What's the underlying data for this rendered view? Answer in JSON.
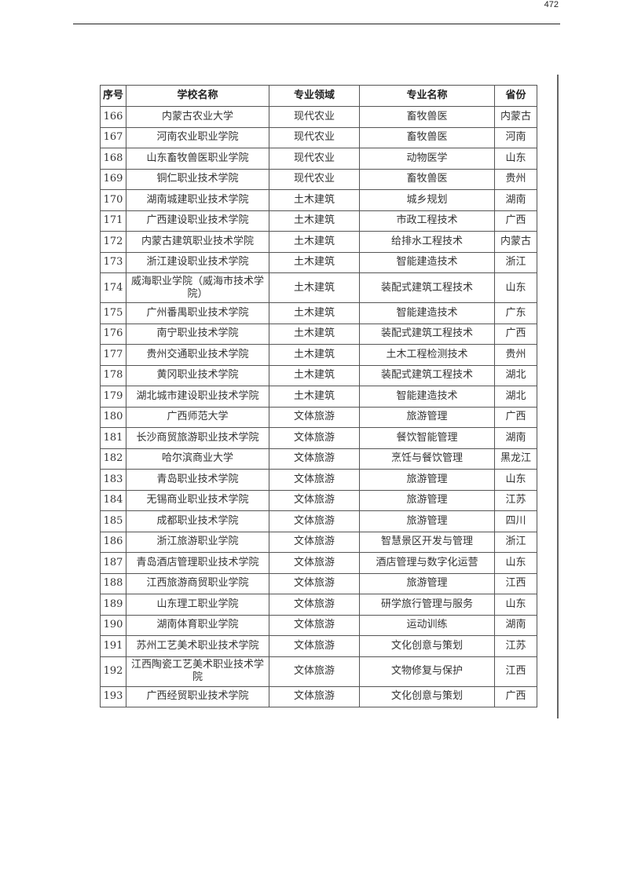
{
  "page_number": "472",
  "table": {
    "headers": [
      "序号",
      "学校名称",
      "专业领域",
      "专业名称",
      "省份"
    ],
    "rows": [
      [
        "166",
        "内蒙古农业大学",
        "现代农业",
        "畜牧兽医",
        "内蒙古"
      ],
      [
        "167",
        "河南农业职业学院",
        "现代农业",
        "畜牧兽医",
        "河南"
      ],
      [
        "168",
        "山东畜牧兽医职业学院",
        "现代农业",
        "动物医学",
        "山东"
      ],
      [
        "169",
        "铜仁职业技术学院",
        "现代农业",
        "畜牧兽医",
        "贵州"
      ],
      [
        "170",
        "湖南城建职业技术学院",
        "土木建筑",
        "城乡规划",
        "湖南"
      ],
      [
        "171",
        "广西建设职业技术学院",
        "土木建筑",
        "市政工程技术",
        "广西"
      ],
      [
        "172",
        "内蒙古建筑职业技术学院",
        "土木建筑",
        "给排水工程技术",
        "内蒙古"
      ],
      [
        "173",
        "浙江建设职业技术学院",
        "土木建筑",
        "智能建造技术",
        "浙江"
      ],
      [
        "174",
        "威海职业学院（威海市技术学院）",
        "土木建筑",
        "装配式建筑工程技术",
        "山东"
      ],
      [
        "175",
        "广州番禺职业技术学院",
        "土木建筑",
        "智能建造技术",
        "广东"
      ],
      [
        "176",
        "南宁职业技术学院",
        "土木建筑",
        "装配式建筑工程技术",
        "广西"
      ],
      [
        "177",
        "贵州交通职业技术学院",
        "土木建筑",
        "土木工程检测技术",
        "贵州"
      ],
      [
        "178",
        "黄冈职业技术学院",
        "土木建筑",
        "装配式建筑工程技术",
        "湖北"
      ],
      [
        "179",
        "湖北城市建设职业技术学院",
        "土木建筑",
        "智能建造技术",
        "湖北"
      ],
      [
        "180",
        "广西师范大学",
        "文体旅游",
        "旅游管理",
        "广西"
      ],
      [
        "181",
        "长沙商贸旅游职业技术学院",
        "文体旅游",
        "餐饮智能管理",
        "湖南"
      ],
      [
        "182",
        "哈尔滨商业大学",
        "文体旅游",
        "烹饪与餐饮管理",
        "黑龙江"
      ],
      [
        "183",
        "青岛职业技术学院",
        "文体旅游",
        "旅游管理",
        "山东"
      ],
      [
        "184",
        "无锡商业职业技术学院",
        "文体旅游",
        "旅游管理",
        "江苏"
      ],
      [
        "185",
        "成都职业技术学院",
        "文体旅游",
        "旅游管理",
        "四川"
      ],
      [
        "186",
        "浙江旅游职业学院",
        "文体旅游",
        "智慧景区开发与管理",
        "浙江"
      ],
      [
        "187",
        "青岛酒店管理职业技术学院",
        "文体旅游",
        "酒店管理与数字化运营",
        "山东"
      ],
      [
        "188",
        "江西旅游商贸职业学院",
        "文体旅游",
        "旅游管理",
        "江西"
      ],
      [
        "189",
        "山东理工职业学院",
        "文体旅游",
        "研学旅行管理与服务",
        "山东"
      ],
      [
        "190",
        "湖南体育职业学院",
        "文体旅游",
        "运动训练",
        "湖南"
      ],
      [
        "191",
        "苏州工艺美术职业技术学院",
        "文体旅游",
        "文化创意与策划",
        "江苏"
      ],
      [
        "192",
        "江西陶瓷工艺美术职业技术学院",
        "文体旅游",
        "文物修复与保护",
        "江西"
      ],
      [
        "193",
        "广西经贸职业技术学院",
        "文体旅游",
        "文化创意与策划",
        "广西"
      ]
    ]
  }
}
